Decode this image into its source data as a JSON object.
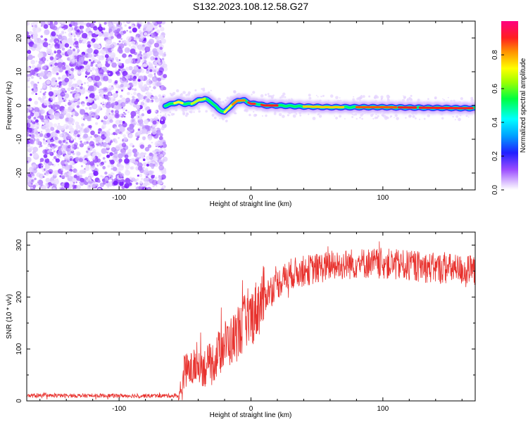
{
  "title": "S132.2023.108.12.58.G27",
  "chart_data": [
    {
      "type": "heatmap",
      "title": "",
      "xlabel": "Height of straight line (km)",
      "ylabel": "Frequency (Hz)",
      "xlim": [
        -170,
        170
      ],
      "ylim": [
        -25,
        25
      ],
      "xticks": [
        -100,
        0,
        100
      ],
      "xtick_labels": [
        "-100",
        "0",
        "100"
      ],
      "yticks": [
        -20,
        -10,
        0,
        10,
        20
      ],
      "ytick_labels": [
        "-20",
        "-10",
        "0",
        "10",
        "20"
      ],
      "noise_region_x": [
        -170,
        -65
      ],
      "signal_ridge": {
        "x": [
          -65,
          -60,
          -55,
          -50,
          -45,
          -40,
          -35,
          -30,
          -25,
          -20,
          -15,
          -10,
          -5,
          0,
          5,
          10,
          20,
          40,
          60,
          80,
          100,
          120,
          140,
          160,
          170
        ],
        "y": [
          0,
          0.5,
          1,
          0.5,
          0.5,
          1.5,
          2,
          1,
          -1,
          -2,
          0,
          1.5,
          1.5,
          0.5,
          0.5,
          0,
          0,
          -0.3,
          -0.5,
          -0.5,
          -0.5,
          -0.6,
          -0.7,
          -0.8,
          -0.8
        ]
      },
      "colorbar": {
        "label": "Normalized spectral amplitude",
        "range": [
          0,
          1
        ],
        "ticks": [
          0.0,
          0.2,
          0.4,
          0.6,
          0.8
        ],
        "tick_labels": [
          "0.0",
          "0.2",
          "0.4",
          "0.6",
          "0.8"
        ]
      },
      "grid": false,
      "legend": "none"
    },
    {
      "type": "line",
      "title": "",
      "xlabel": "Height of straight line (km)",
      "ylabel": "SNR (10 * v/v)",
      "xlim": [
        -170,
        170
      ],
      "ylim": [
        0,
        325
      ],
      "xticks": [
        -100,
        0,
        100
      ],
      "xtick_labels": [
        "-100",
        "0",
        "100"
      ],
      "yticks": [
        0,
        100,
        200,
        300
      ],
      "ytick_labels": [
        "0",
        "100",
        "200",
        "300"
      ],
      "series": [
        {
          "color": "#e8322e",
          "x": [
            -170,
            -150,
            -130,
            -110,
            -90,
            -70,
            -55,
            -52,
            -50,
            -45,
            -40,
            -35,
            -30,
            -25,
            -20,
            -15,
            -10,
            -5,
            0,
            5,
            10,
            15,
            20,
            25,
            30,
            40,
            50,
            60,
            70,
            80,
            90,
            100,
            110,
            120,
            130,
            140,
            150,
            160,
            170
          ],
          "values": [
            10,
            10,
            10,
            10,
            10,
            10,
            10,
            15,
            60,
            60,
            70,
            65,
            70,
            90,
            110,
            115,
            130,
            150,
            160,
            180,
            200,
            215,
            225,
            235,
            245,
            250,
            255,
            260,
            262,
            265,
            265,
            265,
            262,
            260,
            258,
            255,
            255,
            252,
            250
          ]
        }
      ],
      "grid": false,
      "legend": "none"
    }
  ]
}
